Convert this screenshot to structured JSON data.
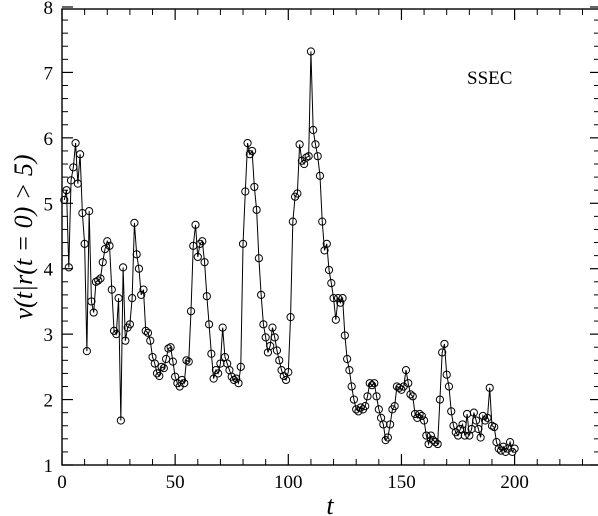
{
  "chart_data": {
    "type": "line",
    "xlabel": "t",
    "ylabel": "v(t|r(t = 0) > 5)",
    "annotation": "SSEC",
    "xlim": [
      0,
      230
    ],
    "ylim": [
      1,
      8
    ],
    "x_ticks": [
      0,
      50,
      100,
      150,
      200
    ],
    "y_ticks": [
      1,
      2,
      3,
      4,
      5,
      6,
      7,
      8
    ],
    "grid": false,
    "marker": "open-circle",
    "series": [
      {
        "values": [
          [
            1,
            5.05
          ],
          [
            2,
            5.2
          ],
          [
            3,
            4.02
          ],
          [
            4,
            5.35
          ],
          [
            5,
            5.55
          ],
          [
            6,
            5.92
          ],
          [
            7,
            5.3
          ],
          [
            8,
            5.75
          ],
          [
            9,
            4.85
          ],
          [
            10,
            4.38
          ],
          [
            11,
            2.74
          ],
          [
            12,
            4.88
          ],
          [
            13,
            3.5
          ],
          [
            14,
            3.33
          ],
          [
            15,
            3.8
          ],
          [
            16,
            3.82
          ],
          [
            17,
            3.85
          ],
          [
            18,
            4.1
          ],
          [
            19,
            4.3
          ],
          [
            20,
            4.42
          ],
          [
            21,
            4.35
          ],
          [
            22,
            3.68
          ],
          [
            23,
            3.05
          ],
          [
            24,
            3.0
          ],
          [
            25,
            3.55
          ],
          [
            26,
            1.68
          ],
          [
            27,
            4.02
          ],
          [
            28,
            2.9
          ],
          [
            29,
            3.1
          ],
          [
            30,
            3.15
          ],
          [
            31,
            3.55
          ],
          [
            32,
            4.7
          ],
          [
            33,
            4.22
          ],
          [
            34,
            4.0
          ],
          [
            35,
            3.6
          ],
          [
            36,
            3.68
          ],
          [
            37,
            3.05
          ],
          [
            38,
            3.02
          ],
          [
            39,
            2.9
          ],
          [
            40,
            2.65
          ],
          [
            41,
            2.55
          ],
          [
            42,
            2.4
          ],
          [
            43,
            2.36
          ],
          [
            44,
            2.5
          ],
          [
            45,
            2.48
          ],
          [
            46,
            2.62
          ],
          [
            47,
            2.78
          ],
          [
            48,
            2.8
          ],
          [
            49,
            2.58
          ],
          [
            50,
            2.35
          ],
          [
            51,
            2.25
          ],
          [
            52,
            2.2
          ],
          [
            53,
            2.3
          ],
          [
            54,
            2.25
          ],
          [
            55,
            2.6
          ],
          [
            56,
            2.58
          ],
          [
            57,
            3.35
          ],
          [
            58,
            4.35
          ],
          [
            59,
            4.67
          ],
          [
            60,
            4.18
          ],
          [
            61,
            4.38
          ],
          [
            62,
            4.42
          ],
          [
            63,
            4.1
          ],
          [
            64,
            3.58
          ],
          [
            65,
            3.15
          ],
          [
            66,
            2.7
          ],
          [
            67,
            2.32
          ],
          [
            68,
            2.45
          ],
          [
            69,
            2.4
          ],
          [
            70,
            2.55
          ],
          [
            71,
            3.1
          ],
          [
            72,
            2.65
          ],
          [
            73,
            2.55
          ],
          [
            74,
            2.45
          ],
          [
            75,
            2.35
          ],
          [
            76,
            2.3
          ],
          [
            77,
            2.32
          ],
          [
            78,
            2.25
          ],
          [
            79,
            2.5
          ],
          [
            80,
            4.38
          ],
          [
            81,
            5.18
          ],
          [
            82,
            5.92
          ],
          [
            83,
            5.75
          ],
          [
            84,
            5.8
          ],
          [
            85,
            5.25
          ],
          [
            86,
            4.9
          ],
          [
            87,
            4.16
          ],
          [
            88,
            3.6
          ],
          [
            89,
            3.15
          ],
          [
            90,
            2.95
          ],
          [
            91,
            2.72
          ],
          [
            92,
            2.82
          ],
          [
            93,
            3.1
          ],
          [
            94,
            2.95
          ],
          [
            95,
            2.75
          ],
          [
            96,
            2.6
          ],
          [
            97,
            2.45
          ],
          [
            98,
            2.36
          ],
          [
            99,
            2.3
          ],
          [
            100,
            2.42
          ],
          [
            101,
            3.26
          ],
          [
            102,
            4.72
          ],
          [
            103,
            5.1
          ],
          [
            104,
            5.15
          ],
          [
            105,
            5.9
          ],
          [
            106,
            5.65
          ],
          [
            107,
            5.6
          ],
          [
            108,
            5.7
          ],
          [
            109,
            5.72
          ],
          [
            110,
            7.32
          ],
          [
            111,
            6.12
          ],
          [
            112,
            5.9
          ],
          [
            113,
            5.72
          ],
          [
            114,
            5.42
          ],
          [
            115,
            4.72
          ],
          [
            116,
            4.28
          ],
          [
            117,
            4.38
          ],
          [
            118,
            3.98
          ],
          [
            119,
            3.78
          ],
          [
            120,
            3.55
          ],
          [
            121,
            3.22
          ],
          [
            122,
            3.55
          ],
          [
            123,
            3.48
          ],
          [
            124,
            3.55
          ],
          [
            125,
            2.98
          ],
          [
            126,
            2.62
          ],
          [
            127,
            2.45
          ],
          [
            128,
            2.2
          ],
          [
            129,
            2.0
          ],
          [
            130,
            1.85
          ],
          [
            131,
            1.82
          ],
          [
            132,
            1.88
          ],
          [
            133,
            1.85
          ],
          [
            134,
            1.9
          ],
          [
            135,
            2.05
          ],
          [
            136,
            2.25
          ],
          [
            137,
            2.22
          ],
          [
            138,
            2.25
          ],
          [
            139,
            2.05
          ],
          [
            140,
            1.85
          ],
          [
            141,
            1.72
          ],
          [
            142,
            1.62
          ],
          [
            143,
            1.38
          ],
          [
            144,
            1.42
          ],
          [
            145,
            1.62
          ],
          [
            146,
            1.85
          ],
          [
            147,
            1.9
          ],
          [
            148,
            2.2
          ],
          [
            149,
            2.18
          ],
          [
            150,
            2.15
          ],
          [
            151,
            2.2
          ],
          [
            152,
            2.45
          ],
          [
            153,
            2.25
          ],
          [
            154,
            2.08
          ],
          [
            155,
            2.05
          ],
          [
            156,
            1.78
          ],
          [
            157,
            1.72
          ],
          [
            158,
            1.78
          ],
          [
            159,
            1.75
          ],
          [
            160,
            1.68
          ],
          [
            161,
            1.45
          ],
          [
            162,
            1.32
          ],
          [
            163,
            1.45
          ],
          [
            164,
            1.38
          ],
          [
            165,
            1.35
          ],
          [
            166,
            1.32
          ],
          [
            167,
            2.0
          ],
          [
            168,
            2.72
          ],
          [
            169,
            2.85
          ],
          [
            170,
            2.38
          ],
          [
            171,
            2.2
          ],
          [
            172,
            1.82
          ],
          [
            173,
            1.6
          ],
          [
            174,
            1.5
          ],
          [
            175,
            1.45
          ],
          [
            176,
            1.55
          ],
          [
            177,
            1.62
          ],
          [
            178,
            1.45
          ],
          [
            179,
            1.78
          ],
          [
            180,
            1.45
          ],
          [
            181,
            1.55
          ],
          [
            182,
            1.8
          ],
          [
            183,
            1.68
          ],
          [
            184,
            1.55
          ],
          [
            185,
            1.42
          ],
          [
            186,
            1.75
          ],
          [
            187,
            1.68
          ],
          [
            188,
            1.72
          ],
          [
            189,
            2.18
          ],
          [
            190,
            1.6
          ],
          [
            191,
            1.58
          ],
          [
            192,
            1.35
          ],
          [
            193,
            1.25
          ],
          [
            194,
            1.22
          ],
          [
            195,
            1.28
          ],
          [
            196,
            1.2
          ],
          [
            197,
            1.25
          ],
          [
            198,
            1.35
          ],
          [
            199,
            1.2
          ],
          [
            200,
            1.25
          ]
        ]
      }
    ]
  }
}
